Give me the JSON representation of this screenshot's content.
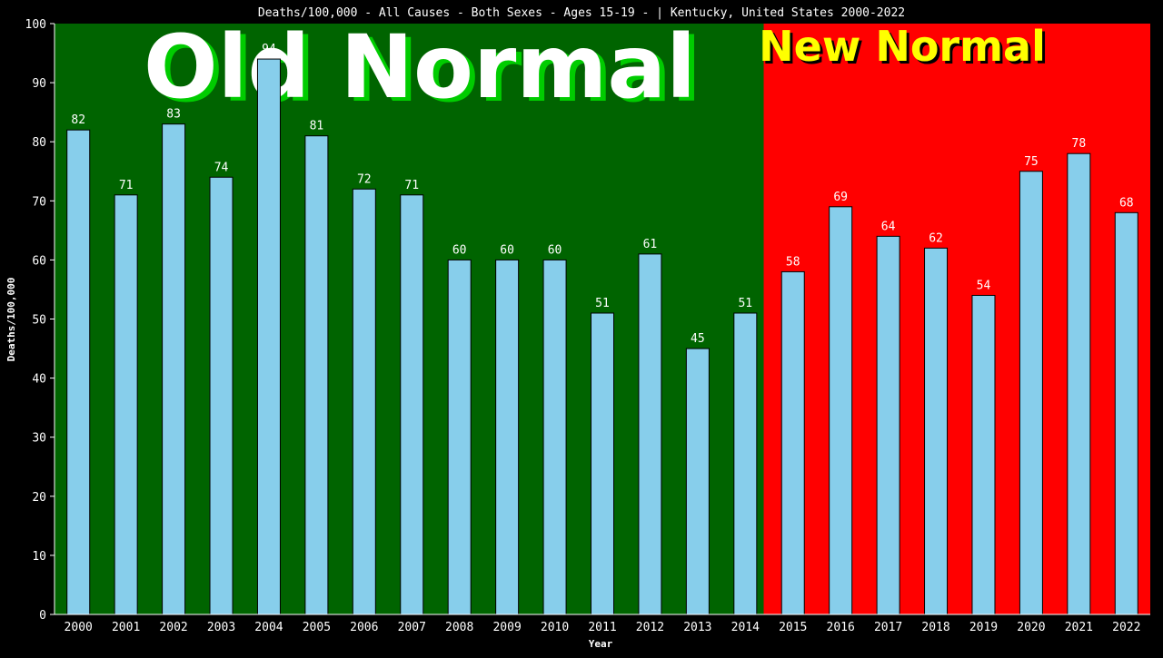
{
  "chart_data": {
    "type": "bar",
    "title": "Deaths/100,000 - All Causes - Both Sexes - Ages 15-19 -  | Kentucky, United States 2000-2022",
    "xlabel": "Year",
    "ylabel": "Deaths/100,000",
    "ylim": [
      0,
      100
    ],
    "yticks": [
      0,
      10,
      20,
      30,
      40,
      50,
      60,
      70,
      80,
      90,
      100
    ],
    "categories": [
      "2000",
      "2001",
      "2002",
      "2003",
      "2004",
      "2005",
      "2006",
      "2007",
      "2008",
      "2009",
      "2010",
      "2011",
      "2012",
      "2013",
      "2014",
      "2015",
      "2016",
      "2017",
      "2018",
      "2019",
      "2020",
      "2021",
      "2022"
    ],
    "values": [
      82,
      71,
      83,
      74,
      94,
      81,
      72,
      71,
      60,
      60,
      60,
      51,
      61,
      45,
      51,
      58,
      69,
      64,
      62,
      54,
      75,
      78,
      68
    ],
    "grid": false,
    "regions": [
      {
        "label": "Old Normal",
        "from": "2000",
        "to": "2014",
        "color": "#006400",
        "text_color": "#ffffff",
        "shadow_color": "#00cc00"
      },
      {
        "label": "New Normal",
        "from": "2015",
        "to": "2022",
        "color": "#ff0000",
        "text_color": "#ffff00",
        "shadow_color": "#000000"
      }
    ],
    "colors": {
      "bar": "#87ceeb",
      "bar_edge": "#000000",
      "background": "#000000",
      "text": "#ffffff"
    }
  }
}
